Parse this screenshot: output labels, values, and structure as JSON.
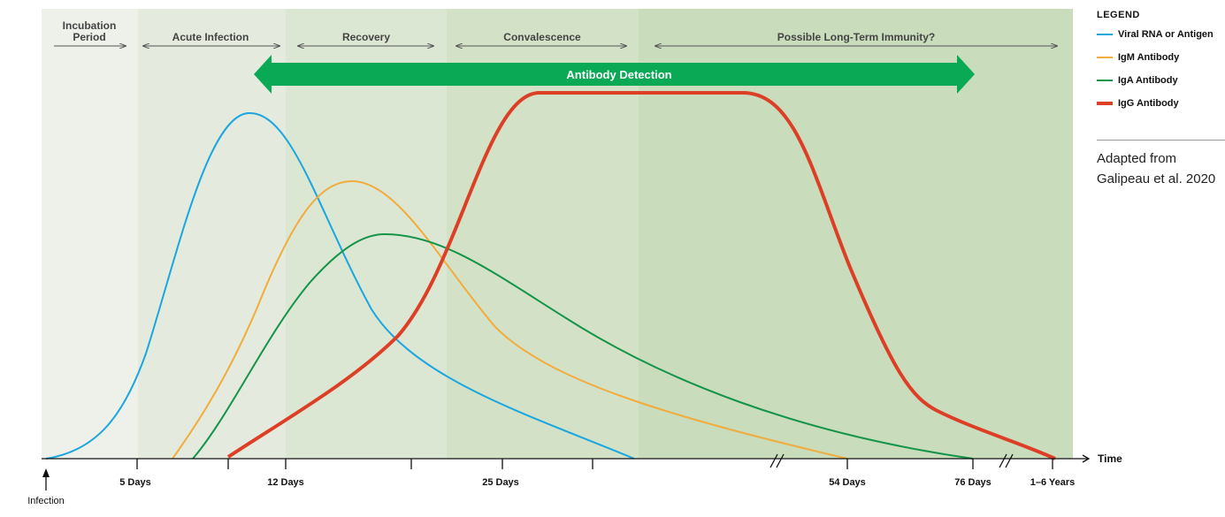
{
  "phases": [
    "Incubation",
    "Period",
    "Acute Infection",
    "Recovery",
    "Convalescence",
    "Possible Long-Term Immunity?"
  ],
  "antibody_detection": "Antibody Detection",
  "axis": {
    "label": "Time",
    "ticks": [
      "5 Days",
      "12 Days",
      "25 Days",
      "54 Days",
      "76 Days",
      "1–6 Years"
    ],
    "infection_label": "Infection"
  },
  "legend": {
    "title": "LEGEND",
    "items": [
      {
        "label": "Viral RNA or Antigen",
        "color": "#1aa6df"
      },
      {
        "label": "IgM Antibody",
        "color": "#f2ac3c"
      },
      {
        "label": "IgA Antibody",
        "color": "#139448"
      },
      {
        "label": "IgG Antibody",
        "color": "#dc3f26"
      }
    ]
  },
  "source": [
    "Adapted from",
    "Galipeau et al. 2020"
  ],
  "colors": {
    "arrow": "#0aa955",
    "phase_bands": [
      "#eef0ea",
      "#e4eadd",
      "#dce7d3",
      "#d3e2c7",
      "#c9dcbb"
    ]
  }
}
